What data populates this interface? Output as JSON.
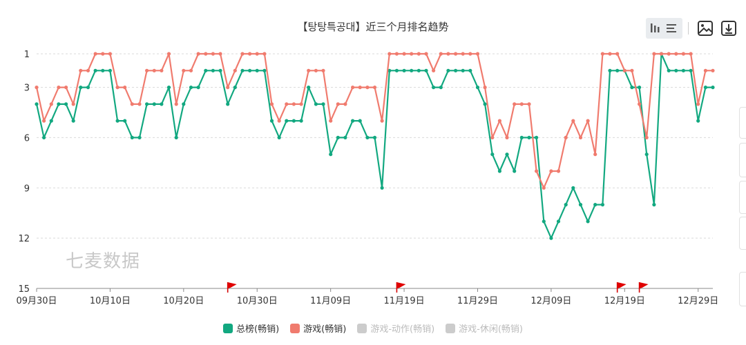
{
  "title": "【탕탕특공대】近三个月排名趋势",
  "watermark": "七麦数据",
  "toolbar": {
    "icons": [
      "bar-chart-icon",
      "list-icon",
      "image-save-icon",
      "download-icon"
    ]
  },
  "colors": {
    "total": "#12a880",
    "game": "#f07b6e",
    "disabled": "#cccccc",
    "grid": "#d9d9d9"
  },
  "chart_data": {
    "type": "line",
    "title": "【탕탕특공대】近三个月排名趋势",
    "y_reversed": true,
    "ylim": [
      1,
      15
    ],
    "y_ticks": [
      1,
      3,
      6,
      9,
      12,
      15
    ],
    "x_tick_labels": [
      "09月30日",
      "10月10日",
      "10月20日",
      "10月30日",
      "11月09日",
      "11月19日",
      "11月29日",
      "12月09日",
      "12月19日",
      "12月29日"
    ],
    "x_tick_index": [
      0,
      10,
      20,
      30,
      40,
      50,
      60,
      70,
      80,
      90
    ],
    "grid": true,
    "legend_position": "bottom-center",
    "flag_days": [
      26,
      49,
      79,
      82
    ],
    "series": [
      {
        "name": "总榜(畅销)",
        "active": true,
        "values": [
          4,
          6,
          5,
          4,
          4,
          5,
          3,
          3,
          2,
          2,
          2,
          5,
          5,
          6,
          6,
          4,
          4,
          4,
          3,
          6,
          4,
          3,
          3,
          2,
          2,
          2,
          4,
          3,
          2,
          2,
          2,
          2,
          5,
          6,
          5,
          5,
          5,
          3,
          4,
          4,
          7,
          6,
          6,
          5,
          5,
          6,
          6,
          9,
          2,
          2,
          2,
          2,
          2,
          2,
          3,
          3,
          2,
          2,
          2,
          2,
          3,
          4,
          7,
          8,
          7,
          8,
          6,
          6,
          6,
          11,
          12,
          11,
          10,
          9,
          10,
          11,
          10,
          10,
          2,
          2,
          2,
          3,
          3,
          7,
          10,
          1,
          2,
          2,
          2,
          2,
          5,
          3,
          3
        ]
      },
      {
        "name": "游戏(畅销)",
        "active": true,
        "values": [
          3,
          5,
          4,
          3,
          3,
          4,
          2,
          2,
          1,
          1,
          1,
          3,
          3,
          4,
          4,
          2,
          2,
          2,
          1,
          4,
          2,
          2,
          1,
          1,
          1,
          1,
          3,
          2,
          1,
          1,
          1,
          1,
          4,
          5,
          4,
          4,
          4,
          2,
          2,
          2,
          5,
          4,
          4,
          3,
          3,
          3,
          3,
          5,
          1,
          1,
          1,
          1,
          1,
          1,
          2,
          1,
          1,
          1,
          1,
          1,
          1,
          3,
          6,
          5,
          6,
          4,
          4,
          4,
          8,
          9,
          8,
          8,
          6,
          5,
          6,
          5,
          7,
          1,
          1,
          1,
          2,
          2,
          4,
          6,
          1,
          1,
          1,
          1,
          1,
          1,
          4,
          2,
          2
        ]
      },
      {
        "name": "游戏-动作(畅销)",
        "active": false,
        "values": []
      },
      {
        "name": "游戏-休闲(畅销)",
        "active": false,
        "values": []
      }
    ]
  }
}
